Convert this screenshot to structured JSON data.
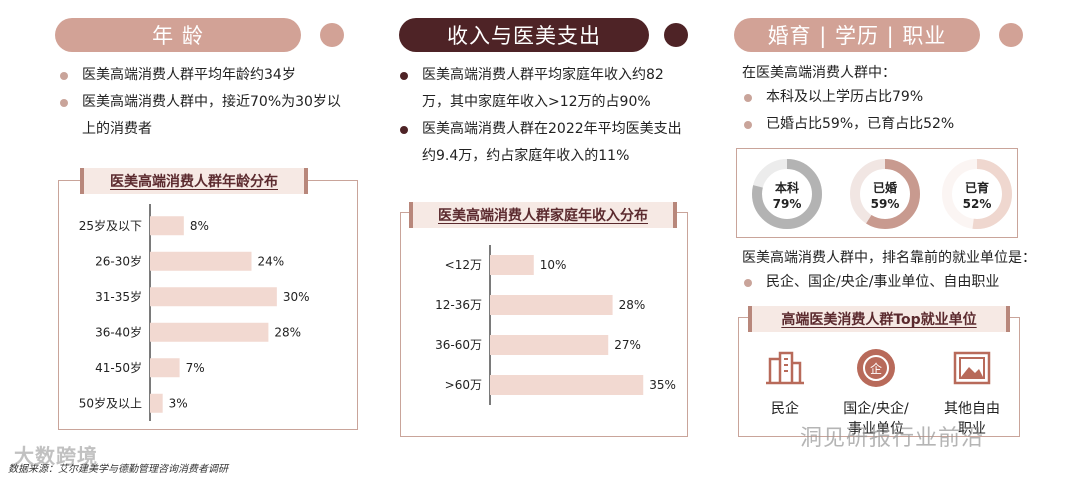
{
  "colors": {
    "pink": "#d2a296",
    "dark": "#4e2326",
    "bar": "#f2d9d1",
    "dot_light": "#c9a49a",
    "dot_dark": "#4e2326"
  },
  "age": {
    "title": "年 龄",
    "bullets": [
      "医美高端消费人群平均年龄约34岁",
      "医美高端消费人群中，接近70%为30岁以上的消费者"
    ],
    "chart_title": "医美高端消费人群年龄分布"
  },
  "income": {
    "title": "收入与医美支出",
    "bullets": [
      "医美高端消费人群平均家庭年收入约82万，其中家庭年收入>12万的占90%",
      "医美高端消费人群在2022年平均医美支出约9.4万，约占家庭年收入的11%"
    ],
    "chart_title": "医美高端消费人群家庭年收入分布"
  },
  "profile": {
    "title": "婚育 | 学历 | 职业",
    "intro": "在医美高端消费人群中：",
    "bullets": [
      "本科及以上学历占比79%",
      "已婚占比59%，已育占比52%"
    ],
    "rings": [
      {
        "label": "本科",
        "value_text": "79%",
        "value": 79,
        "color": "#b3b3b3"
      },
      {
        "label": "已婚",
        "value_text": "59%",
        "value": 59,
        "color": "#c89a8f"
      },
      {
        "label": "已育",
        "value_text": "52%",
        "value": 52,
        "color": "#efd7cf"
      }
    ],
    "employment_intro": "医美高端消费人群中，排名靠前的就业单位是：",
    "employment_bullet": "民企、国企/央企/事业单位、自由职业",
    "jobs_title": "高端医美消费人群Top就业单位",
    "jobs": [
      {
        "label": "民企",
        "icon": "building-icon"
      },
      {
        "label": "国企/央企/事业单位",
        "icon": "enterprise-seal-icon"
      },
      {
        "label": "其他自由职业",
        "icon": "picture-frame-icon"
      }
    ]
  },
  "footer": {
    "source": "数据来源：艾尔建美学与德勤管理咨询消费者调研"
  },
  "watermarks": {
    "left": "大数跨境",
    "right": "洞见研报行业前沿"
  },
  "chart_data": [
    {
      "type": "bar",
      "orientation": "horizontal",
      "title": "医美高端消费人群年龄分布",
      "categories": [
        "25岁及以下",
        "26-30岁",
        "31-35岁",
        "36-40岁",
        "41-50岁",
        "50岁及以上"
      ],
      "values": [
        8,
        24,
        30,
        28,
        7,
        3
      ],
      "value_labels": [
        "8%",
        "24%",
        "30%",
        "28%",
        "7%",
        "3%"
      ],
      "unit": "%",
      "xlim": [
        0,
        35
      ],
      "grid": false
    },
    {
      "type": "bar",
      "orientation": "horizontal",
      "title": "医美高端消费人群家庭年收入分布",
      "categories": [
        "<12万",
        "12-36万",
        "36-60万",
        ">60万"
      ],
      "values": [
        10,
        28,
        27,
        35
      ],
      "value_labels": [
        "10%",
        "28%",
        "27%",
        "35%"
      ],
      "unit": "%",
      "xlim": [
        0,
        37
      ],
      "grid": false
    }
  ]
}
